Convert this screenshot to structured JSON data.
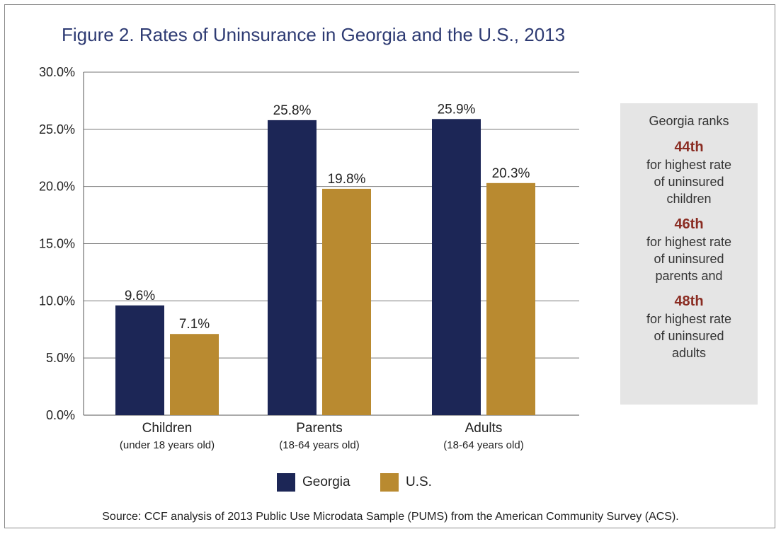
{
  "title": "Figure 2. Rates of Uninsurance in Georgia and the U.S., 2013",
  "source": "Source: CCF analysis of 2013 Public Use Microdata Sample (PUMS) from the American Community Survey (ACS).",
  "colors": {
    "title": "#2e3b73",
    "georgia": "#1c2656",
    "us": "#b98a30",
    "rank": "#8a2c22",
    "sidebox": "#e5e5e5"
  },
  "sidebox": {
    "intro": "Georgia ranks",
    "items": [
      {
        "rank": "44th",
        "lines": [
          "for highest rate",
          "of uninsured",
          "children"
        ]
      },
      {
        "rank": "46th",
        "lines": [
          "for highest rate",
          "of uninsured",
          "parents and"
        ]
      },
      {
        "rank": "48th",
        "lines": [
          "for highest rate",
          "of uninsured",
          "adults"
        ]
      }
    ]
  },
  "chart_data": {
    "type": "bar",
    "categories": [
      "Children",
      "Parents",
      "Adults"
    ],
    "category_sublabels": [
      "(under 18 years old)",
      "(18-64 years old)",
      "(18-64 years old)"
    ],
    "series": [
      {
        "name": "Georgia",
        "values": [
          9.6,
          25.8,
          25.9
        ],
        "labels": [
          "9.6%",
          "25.8%",
          "25.9%"
        ]
      },
      {
        "name": "U.S.",
        "values": [
          7.1,
          19.8,
          20.3
        ],
        "labels": [
          "7.1%",
          "19.8%",
          "20.3%"
        ]
      }
    ],
    "yticks": [
      "0.0%",
      "5.0%",
      "10.0%",
      "15.0%",
      "20.0%",
      "25.0%",
      "30.0%"
    ],
    "ylim": [
      0,
      30
    ],
    "grid": true,
    "legend_position": "bottom-center"
  }
}
